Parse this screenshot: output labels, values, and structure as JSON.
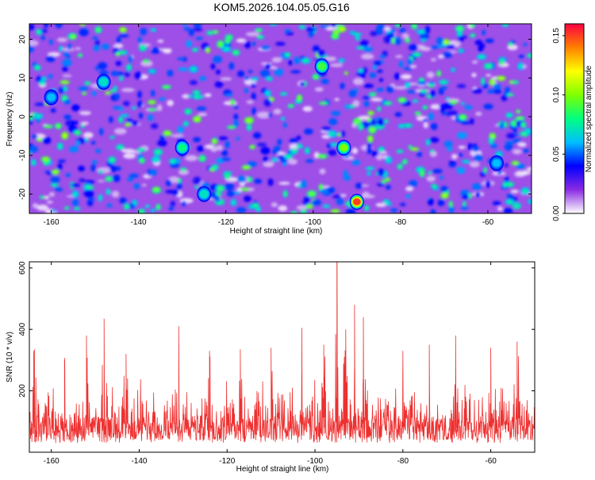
{
  "figure_title": "KOM5.2026.104.05.05.G16",
  "chart_data": [
    {
      "type": "heatmap",
      "xlabel": "Height of straight line (km)",
      "ylabel": "Frequency (Hz)",
      "xlim": [
        -165,
        -50
      ],
      "ylim": [
        -25,
        24
      ],
      "xticks": [
        "-160",
        "-140",
        "-120",
        "-100",
        "-80",
        "-60"
      ],
      "yticks": [
        "-20",
        "-10",
        "0",
        "10",
        "20"
      ],
      "colorbar": {
        "label": "Normalized spectral amplitude",
        "range": [
          0,
          0.16
        ],
        "ticks": [
          "0.00",
          "0.05",
          "0.10",
          "0.15"
        ],
        "colors": [
          "#ffffff",
          "#8a2be2",
          "#0000ff",
          "#00bfff",
          "#00ff80",
          "#7fff00",
          "#ffff00",
          "#ff8000",
          "#ff0040"
        ]
      },
      "hotspots": [
        {
          "x": -93,
          "y": -8,
          "value": 0.1
        },
        {
          "x": -98,
          "y": 13,
          "value": 0.09
        },
        {
          "x": -90,
          "y": -22,
          "value": 0.15
        },
        {
          "x": -130,
          "y": -8,
          "value": 0.08
        },
        {
          "x": -148,
          "y": 9,
          "value": 0.07
        },
        {
          "x": -125,
          "y": -20,
          "value": 0.07
        },
        {
          "x": -160,
          "y": 5,
          "value": 0.06
        },
        {
          "x": -58,
          "y": -12,
          "value": 0.06
        }
      ]
    },
    {
      "type": "line",
      "xlabel": "Height of straight line (km)",
      "ylabel": "SNR (10 * v/v)",
      "xlim": [
        -165,
        -50
      ],
      "ylim": [
        0,
        620
      ],
      "xticks": [
        "-160",
        "-140",
        "-120",
        "-100",
        "-80",
        "-60"
      ],
      "yticks": [
        "200",
        "400",
        "600"
      ],
      "color": "#ee3030",
      "noise_floor": 140,
      "peaks": [
        {
          "x": -164,
          "y": 330
        },
        {
          "x": -157,
          "y": 300
        },
        {
          "x": -152,
          "y": 380
        },
        {
          "x": -148,
          "y": 435
        },
        {
          "x": -143,
          "y": 320
        },
        {
          "x": -131,
          "y": 410
        },
        {
          "x": -124,
          "y": 330
        },
        {
          "x": -117,
          "y": 335
        },
        {
          "x": -110,
          "y": 340
        },
        {
          "x": -103,
          "y": 405
        },
        {
          "x": -98,
          "y": 350
        },
        {
          "x": -95,
          "y": 620
        },
        {
          "x": -93,
          "y": 400
        },
        {
          "x": -91,
          "y": 480
        },
        {
          "x": -89,
          "y": 440
        },
        {
          "x": -80,
          "y": 330
        },
        {
          "x": -74,
          "y": 350
        },
        {
          "x": -68,
          "y": 380
        },
        {
          "x": -60,
          "y": 340
        },
        {
          "x": -54,
          "y": 360
        }
      ]
    }
  ]
}
